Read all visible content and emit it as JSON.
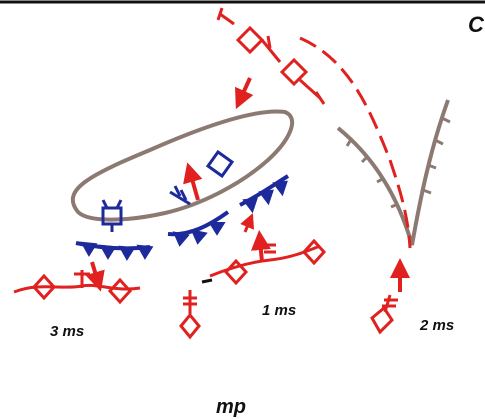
{
  "labels": {
    "corner": "C",
    "m3": "3 ms",
    "m1": "1 ms",
    "m2": "2 ms",
    "bottom": "mp"
  },
  "colors": {
    "red": "#e0211f",
    "blue": "#1c2a9c",
    "brown": "#8c7a72",
    "black": "#111111"
  }
}
